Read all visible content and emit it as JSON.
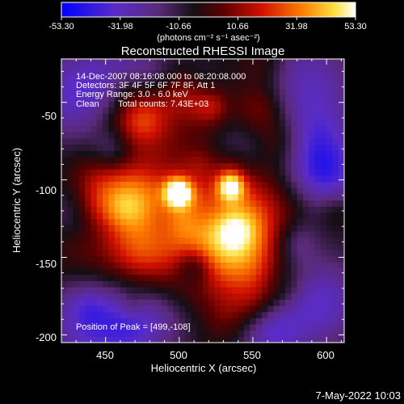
{
  "colorbar": {
    "ticks": [
      "-53.30",
      "-31.98",
      "-10.66",
      "10.66",
      "31.98",
      "53.30"
    ],
    "tick_values": [
      -53.3,
      -31.98,
      -10.66,
      10.66,
      31.98,
      53.3
    ],
    "range": [
      -53.3,
      53.3
    ],
    "units": "(photons cm⁻² s⁻¹ asec⁻²)"
  },
  "chart_data": {
    "type": "heatmap",
    "title": "Reconstructed RHESSI Image",
    "xlabel": "Heliocentric X (arcsec)",
    "ylabel": "Heliocentric Y (arcsec)",
    "xlim": [
      420,
      612
    ],
    "ylim": [
      -205,
      -22
    ],
    "xticks": [
      450,
      500,
      550,
      600
    ],
    "yticks": [
      -50,
      -100,
      -150,
      -200
    ],
    "colormap": "rhessi (blue-purple-black-red-yellow-white)",
    "value_range": [
      -53.3,
      53.3
    ],
    "peaks": [
      {
        "x": 499,
        "y": -108,
        "value": 53.3
      },
      {
        "x": 535,
        "y": -104,
        "value": 45.0
      }
    ],
    "info": {
      "time": "14-Dec-2007 08:16:08.000 to 08:20:08.000",
      "detectors": "Detectors: 3F 4F 5F 6F 7F 8F, Att 1",
      "energy": "Energy Range: 3.0 - 6.0 keV",
      "method": "Clean",
      "counts": "Total counts: 7.43E+03",
      "peak": "Position of Peak = [499,-108]"
    }
  },
  "footer": {
    "date": "7-May-2022 10:03"
  },
  "colors": {
    "background": "#000000",
    "text": "#ffffff"
  }
}
